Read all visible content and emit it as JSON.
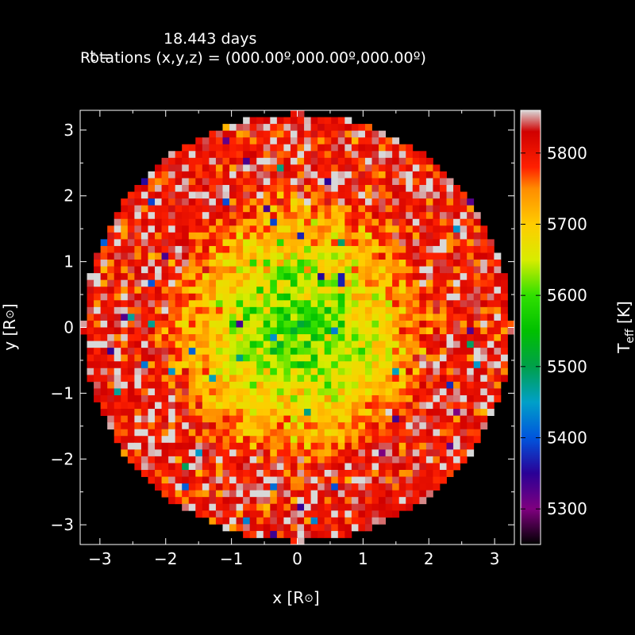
{
  "header": {
    "time_label": "t =",
    "time_value": "18.443 days",
    "rotations": "Rotations (x,y,z) = (000.00º,000.00º,000.00º)"
  },
  "chart_data": {
    "type": "heatmap",
    "title": "",
    "xlabel": "x [R⊙]",
    "ylabel": "y [R⊙]",
    "colorbar_label": "T_eff [K]",
    "xlim": [
      -3.3,
      3.3
    ],
    "ylim": [
      -3.3,
      3.3
    ],
    "x_ticks": [
      -3,
      -2,
      -1,
      0,
      1,
      2,
      3
    ],
    "y_ticks": [
      -3,
      -2,
      -1,
      0,
      1,
      2,
      3
    ],
    "x_tick_labels": [
      "−3",
      "−2",
      "−1",
      "0",
      "1",
      "2",
      "3"
    ],
    "y_tick_labels": [
      "−3",
      "−2",
      "−1",
      "0",
      "1",
      "2",
      "3"
    ],
    "colorbar_range": [
      5250,
      5860
    ],
    "colorbar_ticks": [
      5300,
      5400,
      5500,
      5600,
      5700,
      5800
    ],
    "disk_radius": 3.25,
    "grid": false,
    "colormap": [
      {
        "t": 5250,
        "c": "#000000"
      },
      {
        "t": 5300,
        "c": "#7f007f"
      },
      {
        "t": 5350,
        "c": "#2a0096"
      },
      {
        "t": 5400,
        "c": "#0055dd"
      },
      {
        "t": 5450,
        "c": "#00a0c8"
      },
      {
        "t": 5500,
        "c": "#00a04a"
      },
      {
        "t": 5550,
        "c": "#00c000"
      },
      {
        "t": 5600,
        "c": "#30e000"
      },
      {
        "t": 5650,
        "c": "#d8ec00"
      },
      {
        "t": 5700,
        "c": "#ffcc00"
      },
      {
        "t": 5750,
        "c": "#ff8c00"
      },
      {
        "t": 5780,
        "c": "#ff2000"
      },
      {
        "t": 5830,
        "c": "#d00000"
      },
      {
        "t": 5860,
        "c": "#d8d8d8"
      }
    ],
    "profile": {
      "t_center": 5590,
      "t_edge": 5810,
      "noise": 75,
      "seed": 18443
    }
  }
}
